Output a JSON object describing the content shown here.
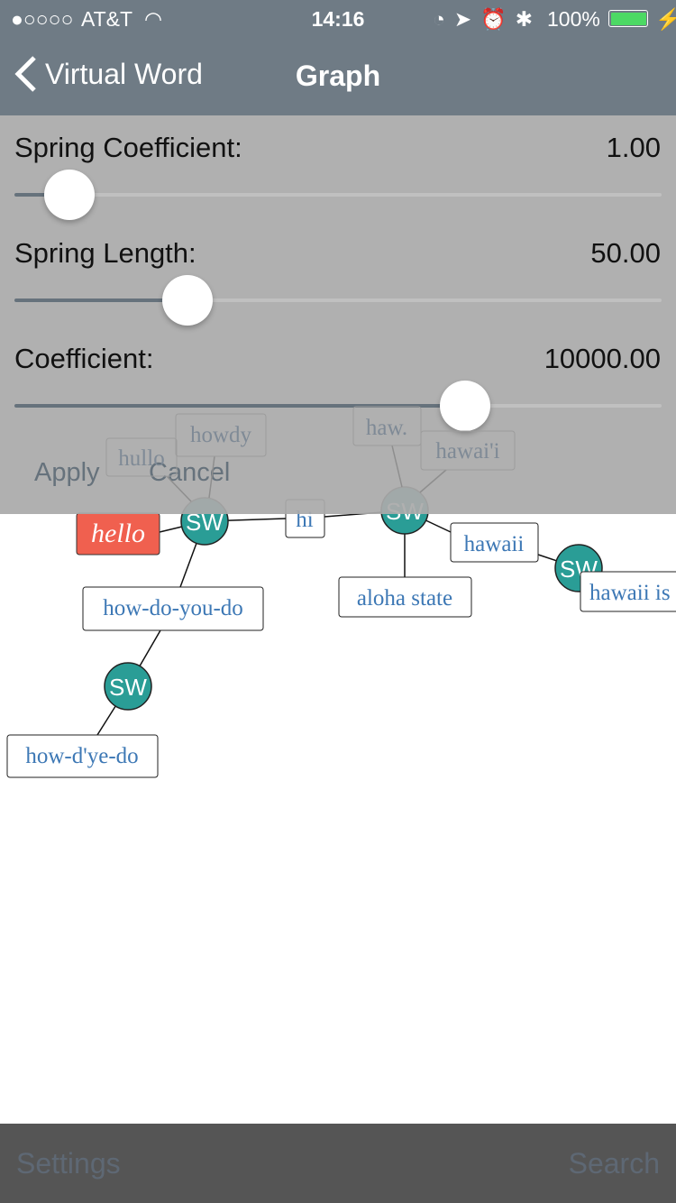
{
  "status_bar": {
    "signal": "●○○○○",
    "carrier": "AT&T",
    "time": "14:16",
    "battery": "100%",
    "battery_color": "#4cd964"
  },
  "nav": {
    "back_label": "Virtual Word",
    "title": "Graph"
  },
  "panel": {
    "sliders": [
      {
        "label": "Spring Coefficient:",
        "value": "1.00",
        "fraction": 0.085
      },
      {
        "label": "Spring Length:",
        "value": "50.00",
        "fraction": 0.268
      },
      {
        "label": "Coefficient:",
        "value": "10000.00",
        "fraction": 0.697
      }
    ],
    "apply": "Apply",
    "cancel": "Cancel"
  },
  "graph": {
    "hub_label": "SW",
    "hub_color": "#2a9d96",
    "selected_color": "#f0604f",
    "words": {
      "hello": "hello",
      "hi": "hi",
      "hullo": "hullo",
      "howdy": "howdy",
      "how_do_you_do": "how-do-you-do",
      "how_dye_do": "how-d'ye-do",
      "haw": "haw.",
      "hawaii_okina": "hawai'i",
      "hawaii": "hawaii",
      "aloha_state": "aloha state",
      "hawaii_is": "hawaii is"
    }
  },
  "bottom": {
    "settings": "Settings",
    "search": "Search"
  }
}
